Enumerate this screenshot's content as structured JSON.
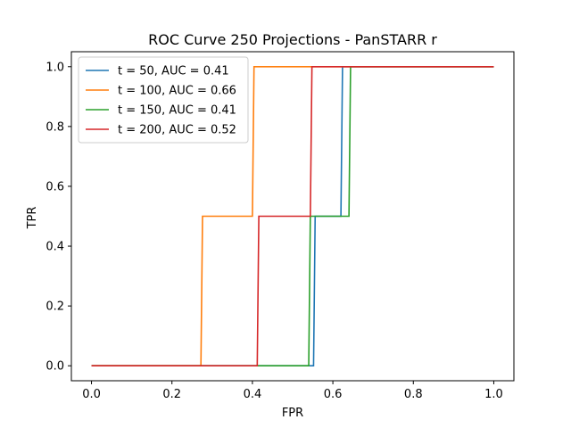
{
  "chart_data": {
    "type": "line",
    "title": "ROC Curve 250 Projections - PanSTARR r",
    "xlabel": "FPR",
    "ylabel": "TPR",
    "xlim": [
      -0.05,
      1.05
    ],
    "ylim": [
      -0.05,
      1.05
    ],
    "xticks": [
      "0.0",
      "0.2",
      "0.4",
      "0.6",
      "0.8",
      "1.0"
    ],
    "yticks": [
      "0.0",
      "0.2",
      "0.4",
      "0.6",
      "0.8",
      "1.0"
    ],
    "legend_position": "top-left",
    "grid": false,
    "series": [
      {
        "name": "t = 50, AUC = 0.41",
        "color": "#1f77b4",
        "x": [
          0.0,
          0.552,
          0.556,
          0.62,
          0.624,
          1.0
        ],
        "y": [
          0.0,
          0.0,
          0.5,
          0.5,
          1.0,
          1.0
        ]
      },
      {
        "name": "t = 100, AUC = 0.66",
        "color": "#ff7f0e",
        "x": [
          0.0,
          0.272,
          0.276,
          0.4,
          0.404,
          1.0
        ],
        "y": [
          0.0,
          0.0,
          0.5,
          0.5,
          1.0,
          1.0
        ]
      },
      {
        "name": "t = 150, AUC = 0.41",
        "color": "#2ca02c",
        "x": [
          0.0,
          0.54,
          0.544,
          0.64,
          0.644,
          1.0
        ],
        "y": [
          0.0,
          0.0,
          0.5,
          0.5,
          1.0,
          1.0
        ]
      },
      {
        "name": "t = 200, AUC = 0.52",
        "color": "#d62728",
        "x": [
          0.0,
          0.412,
          0.416,
          0.544,
          0.548,
          1.0
        ],
        "y": [
          0.0,
          0.0,
          0.5,
          0.5,
          1.0,
          1.0
        ]
      }
    ]
  }
}
